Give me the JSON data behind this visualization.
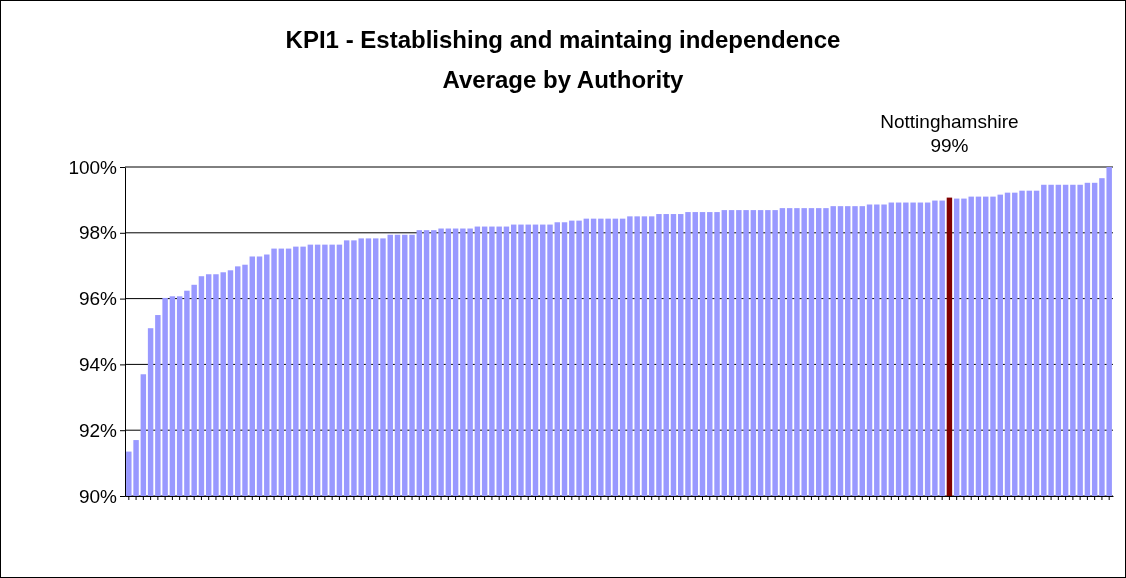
{
  "chart_data": {
    "type": "bar",
    "title": "KPI1 - Establishing and maintaing independence",
    "subtitle": "Average by Authority",
    "categories": [
      null,
      null,
      null,
      null,
      null,
      null,
      null,
      null,
      null,
      null,
      null,
      null,
      null,
      null,
      null,
      null,
      null,
      null,
      null,
      null,
      null,
      null,
      null,
      null,
      null,
      null,
      null,
      null,
      null,
      null,
      null,
      null,
      null,
      null,
      null,
      null,
      null,
      null,
      null,
      null,
      null,
      null,
      null,
      null,
      null,
      null,
      null,
      null,
      null,
      null,
      null,
      null,
      null,
      null,
      null,
      null,
      null,
      null,
      null,
      null,
      null,
      null,
      null,
      null,
      null,
      null,
      null,
      null,
      null,
      null,
      null,
      null,
      null,
      null,
      null,
      null,
      null,
      null,
      null,
      null,
      null,
      null,
      null,
      null,
      null,
      null,
      null,
      null,
      null,
      null,
      null,
      null,
      null,
      null,
      null,
      null,
      null,
      null,
      null,
      null,
      null,
      null,
      null,
      null,
      null,
      null,
      null,
      null,
      null,
      null,
      null,
      null,
      null,
      null,
      null,
      null,
      null,
      null,
      null,
      null,
      null,
      null,
      null,
      null,
      null,
      null,
      null,
      null,
      null,
      null,
      null,
      null,
      null,
      null,
      null,
      null
    ],
    "values": [
      91.35,
      91.7,
      93.7,
      95.1,
      95.5,
      96.02,
      96.07,
      96.07,
      96.24,
      96.42,
      96.68,
      96.74,
      96.74,
      96.8,
      96.86,
      96.98,
      97.03,
      97.28,
      97.28,
      97.34,
      97.52,
      97.52,
      97.52,
      97.58,
      97.58,
      97.64,
      97.64,
      97.64,
      97.64,
      97.64,
      97.77,
      97.77,
      97.83,
      97.83,
      97.83,
      97.83,
      97.94,
      97.94,
      97.94,
      97.94,
      98.08,
      98.08,
      98.08,
      98.13,
      98.13,
      98.13,
      98.13,
      98.13,
      98.19,
      98.19,
      98.19,
      98.19,
      98.19,
      98.25,
      98.25,
      98.25,
      98.25,
      98.25,
      98.25,
      98.32,
      98.32,
      98.37,
      98.37,
      98.43,
      98.43,
      98.43,
      98.43,
      98.43,
      98.43,
      98.5,
      98.5,
      98.5,
      98.5,
      98.57,
      98.57,
      98.57,
      98.57,
      98.63,
      98.63,
      98.63,
      98.63,
      98.63,
      98.69,
      98.69,
      98.69,
      98.69,
      98.69,
      98.69,
      98.69,
      98.69,
      98.75,
      98.75,
      98.75,
      98.75,
      98.75,
      98.75,
      98.75,
      98.81,
      98.81,
      98.81,
      98.81,
      98.81,
      98.86,
      98.86,
      98.86,
      98.92,
      98.92,
      98.92,
      98.92,
      98.92,
      98.92,
      98.98,
      98.98,
      99.07,
      99.04,
      99.04,
      99.1,
      99.1,
      99.1,
      99.1,
      99.16,
      99.22,
      99.22,
      99.28,
      99.28,
      99.28,
      99.46,
      99.46,
      99.46,
      99.46,
      99.46,
      99.46,
      99.52,
      99.52,
      99.66,
      100
    ],
    "colors": [
      "#9999ff",
      "#9999ff",
      "#9999ff",
      "#9999ff",
      "#9999ff",
      "#9999ff",
      "#9999ff",
      "#9999ff",
      "#9999ff",
      "#9999ff",
      "#9999ff",
      "#9999ff",
      "#9999ff",
      "#9999ff",
      "#9999ff",
      "#9999ff",
      "#9999ff",
      "#9999ff",
      "#9999ff",
      "#9999ff",
      "#9999ff",
      "#9999ff",
      "#9999ff",
      "#9999ff",
      "#9999ff",
      "#9999ff",
      "#9999ff",
      "#9999ff",
      "#9999ff",
      "#9999ff",
      "#9999ff",
      "#9999ff",
      "#9999ff",
      "#9999ff",
      "#9999ff",
      "#9999ff",
      "#9999ff",
      "#9999ff",
      "#9999ff",
      "#9999ff",
      "#9999ff",
      "#9999ff",
      "#9999ff",
      "#9999ff",
      "#9999ff",
      "#9999ff",
      "#9999ff",
      "#9999ff",
      "#9999ff",
      "#9999ff",
      "#9999ff",
      "#9999ff",
      "#9999ff",
      "#9999ff",
      "#9999ff",
      "#9999ff",
      "#9999ff",
      "#9999ff",
      "#9999ff",
      "#9999ff",
      "#9999ff",
      "#9999ff",
      "#9999ff",
      "#9999ff",
      "#9999ff",
      "#9999ff",
      "#9999ff",
      "#9999ff",
      "#9999ff",
      "#9999ff",
      "#9999ff",
      "#9999ff",
      "#9999ff",
      "#9999ff",
      "#9999ff",
      "#9999ff",
      "#9999ff",
      "#9999ff",
      "#9999ff",
      "#9999ff",
      "#9999ff",
      "#9999ff",
      "#9999ff",
      "#9999ff",
      "#9999ff",
      "#9999ff",
      "#9999ff",
      "#9999ff",
      "#9999ff",
      "#9999ff",
      "#9999ff",
      "#9999ff",
      "#9999ff",
      "#9999ff",
      "#9999ff",
      "#9999ff",
      "#9999ff",
      "#9999ff",
      "#9999ff",
      "#9999ff",
      "#9999ff",
      "#9999ff",
      "#9999ff",
      "#9999ff",
      "#9999ff",
      "#9999ff",
      "#9999ff",
      "#9999ff",
      "#9999ff",
      "#9999ff",
      "#9999ff",
      "#9999ff",
      "#9999ff",
      "#800000",
      "#9999ff",
      "#9999ff",
      "#9999ff",
      "#9999ff",
      "#9999ff",
      "#9999ff",
      "#9999ff",
      "#9999ff",
      "#9999ff",
      "#9999ff",
      "#9999ff",
      "#9999ff",
      "#9999ff",
      "#9999ff",
      "#9999ff",
      "#9999ff",
      "#9999ff",
      "#9999ff",
      "#9999ff",
      "#9999ff",
      "#9999ff",
      "#9999ff"
    ],
    "value_labels": [
      null,
      null,
      null,
      null,
      null,
      null,
      null,
      null,
      null,
      null,
      null,
      null,
      null,
      null,
      null,
      null,
      null,
      null,
      null,
      null,
      null,
      null,
      null,
      null,
      null,
      null,
      null,
      null,
      null,
      null,
      null,
      null,
      null,
      null,
      null,
      null,
      null,
      null,
      null,
      null,
      null,
      null,
      null,
      null,
      null,
      null,
      null,
      null,
      null,
      null,
      null,
      null,
      null,
      null,
      null,
      null,
      null,
      null,
      null,
      null,
      null,
      null,
      null,
      null,
      null,
      null,
      null,
      null,
      null,
      null,
      null,
      null,
      null,
      null,
      null,
      null,
      null,
      null,
      null,
      null,
      null,
      null,
      null,
      null,
      null,
      null,
      null,
      null,
      null,
      null,
      null,
      null,
      null,
      null,
      null,
      null,
      null,
      null,
      null,
      null,
      null,
      null,
      null,
      null,
      null,
      null,
      null,
      null,
      null,
      null,
      null,
      null,
      null,
      "99%",
      null,
      null,
      null,
      null,
      null,
      null,
      null,
      null,
      null,
      null,
      null,
      null,
      null,
      null,
      null,
      null,
      null,
      null,
      null,
      null,
      null,
      null
    ],
    "annotations": [
      "Nottinghamshire"
    ],
    "ylim": [
      90,
      100
    ],
    "yticks": [
      {
        "value": 90,
        "label": "90%"
      },
      {
        "value": 92,
        "label": "92%"
      },
      {
        "value": 94,
        "label": "94%"
      },
      {
        "value": 96,
        "label": "96%"
      },
      {
        "value": 98,
        "label": "98%"
      },
      {
        "value": 100,
        "label": "100%"
      }
    ],
    "grid": "y"
  }
}
